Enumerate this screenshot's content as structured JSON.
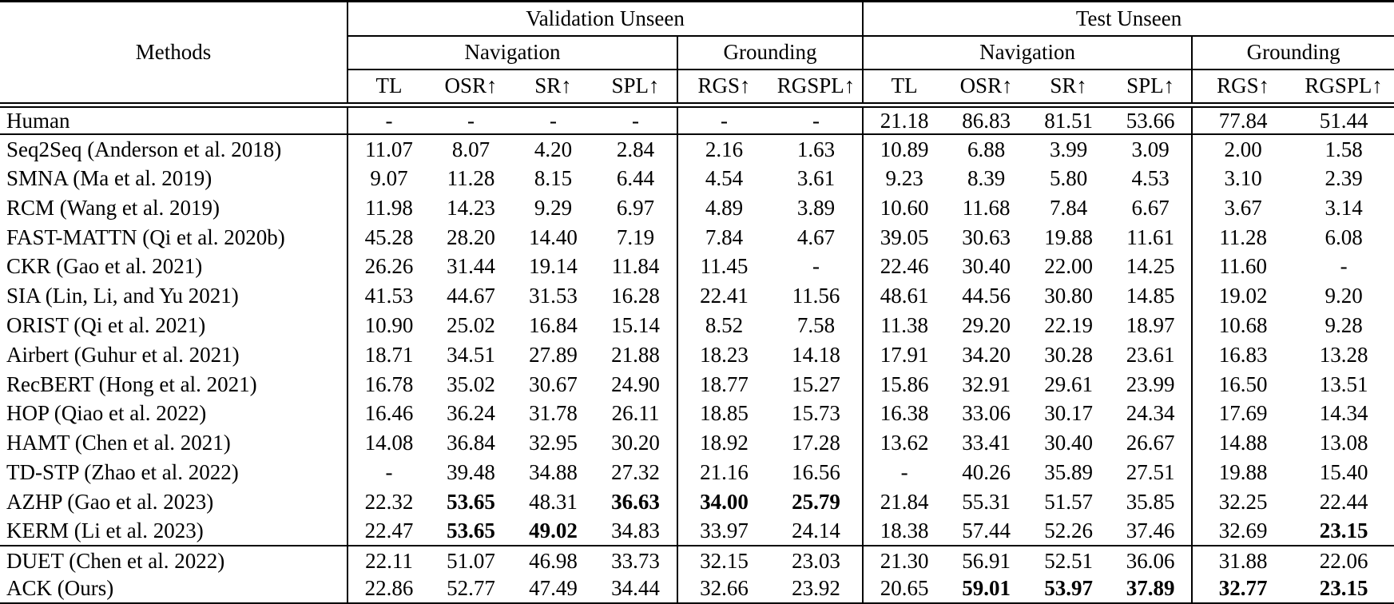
{
  "table": {
    "methods_label": "Methods",
    "groups": [
      {
        "label": "Validation Unseen",
        "sub": [
          {
            "label": "Navigation"
          },
          {
            "label": "Grounding"
          }
        ]
      },
      {
        "label": "Test Unseen",
        "sub": [
          {
            "label": "Navigation"
          },
          {
            "label": "Grounding"
          }
        ]
      }
    ],
    "columns": [
      "TL",
      "OSR↑",
      "SR↑",
      "SPL↑",
      "RGS↑",
      "RGSPL↑",
      "TL",
      "OSR↑",
      "SR↑",
      "SPL↑",
      "RGS↑",
      "RGSPL↑"
    ],
    "rows": [
      {
        "method": "Human",
        "values": [
          "-",
          "-",
          "-",
          "-",
          "-",
          "-",
          "21.18",
          "86.83",
          "81.51",
          "53.66",
          "77.84",
          "51.44"
        ],
        "bold": [],
        "rule_below": true
      },
      {
        "method": "Seq2Seq (Anderson et al. 2018)",
        "values": [
          "11.07",
          "8.07",
          "4.20",
          "2.84",
          "2.16",
          "1.63",
          "10.89",
          "6.88",
          "3.99",
          "3.09",
          "2.00",
          "1.58"
        ],
        "bold": [],
        "rule_below": false
      },
      {
        "method": "SMNA (Ma et al. 2019)",
        "values": [
          "9.07",
          "11.28",
          "8.15",
          "6.44",
          "4.54",
          "3.61",
          "9.23",
          "8.39",
          "5.80",
          "4.53",
          "3.10",
          "2.39"
        ],
        "bold": [],
        "rule_below": false
      },
      {
        "method": "RCM (Wang et al. 2019)",
        "values": [
          "11.98",
          "14.23",
          "9.29",
          "6.97",
          "4.89",
          "3.89",
          "10.60",
          "11.68",
          "7.84",
          "6.67",
          "3.67",
          "3.14"
        ],
        "bold": [],
        "rule_below": false
      },
      {
        "method": "FAST-MATTN (Qi et al. 2020b)",
        "values": [
          "45.28",
          "28.20",
          "14.40",
          "7.19",
          "7.84",
          "4.67",
          "39.05",
          "30.63",
          "19.88",
          "11.61",
          "11.28",
          "6.08"
        ],
        "bold": [],
        "rule_below": false
      },
      {
        "method": "CKR (Gao et al. 2021)",
        "values": [
          "26.26",
          "31.44",
          "19.14",
          "11.84",
          "11.45",
          "-",
          "22.46",
          "30.40",
          "22.00",
          "14.25",
          "11.60",
          "-"
        ],
        "bold": [],
        "rule_below": false
      },
      {
        "method": "SIA (Lin, Li, and Yu 2021)",
        "values": [
          "41.53",
          "44.67",
          "31.53",
          "16.28",
          "22.41",
          "11.56",
          "48.61",
          "44.56",
          "30.80",
          "14.85",
          "19.02",
          "9.20"
        ],
        "bold": [],
        "rule_below": false
      },
      {
        "method": "ORIST (Qi et al. 2021)",
        "values": [
          "10.90",
          "25.02",
          "16.84",
          "15.14",
          "8.52",
          "7.58",
          "11.38",
          "29.20",
          "22.19",
          "18.97",
          "10.68",
          "9.28"
        ],
        "bold": [],
        "rule_below": false
      },
      {
        "method": "Airbert (Guhur et al. 2021)",
        "values": [
          "18.71",
          "34.51",
          "27.89",
          "21.88",
          "18.23",
          "14.18",
          "17.91",
          "34.20",
          "30.28",
          "23.61",
          "16.83",
          "13.28"
        ],
        "bold": [],
        "rule_below": false
      },
      {
        "method": "RecBERT (Hong et al. 2021)",
        "values": [
          "16.78",
          "35.02",
          "30.67",
          "24.90",
          "18.77",
          "15.27",
          "15.86",
          "32.91",
          "29.61",
          "23.99",
          "16.50",
          "13.51"
        ],
        "bold": [],
        "rule_below": false
      },
      {
        "method": "HOP (Qiao et al. 2022)",
        "values": [
          "16.46",
          "36.24",
          "31.78",
          "26.11",
          "18.85",
          "15.73",
          "16.38",
          "33.06",
          "30.17",
          "24.34",
          "17.69",
          "14.34"
        ],
        "bold": [],
        "rule_below": false
      },
      {
        "method": "HAMT (Chen et al. 2021)",
        "values": [
          "14.08",
          "36.84",
          "32.95",
          "30.20",
          "18.92",
          "17.28",
          "13.62",
          "33.41",
          "30.40",
          "26.67",
          "14.88",
          "13.08"
        ],
        "bold": [],
        "rule_below": false
      },
      {
        "method": "TD-STP (Zhao et al. 2022)",
        "values": [
          "-",
          "39.48",
          "34.88",
          "27.32",
          "21.16",
          "16.56",
          "-",
          "40.26",
          "35.89",
          "27.51",
          "19.88",
          "15.40"
        ],
        "bold": [],
        "rule_below": false
      },
      {
        "method": "AZHP (Gao et al. 2023)",
        "values": [
          "22.32",
          "53.65",
          "48.31",
          "36.63",
          "34.00",
          "25.79",
          "21.84",
          "55.31",
          "51.57",
          "35.85",
          "32.25",
          "22.44"
        ],
        "bold": [
          1,
          3,
          4,
          5
        ],
        "rule_below": false
      },
      {
        "method": "KERM (Li et al. 2023)",
        "values": [
          "22.47",
          "53.65",
          "49.02",
          "34.83",
          "33.97",
          "24.14",
          "18.38",
          "57.44",
          "52.26",
          "37.46",
          "32.69",
          "23.15"
        ],
        "bold": [
          1,
          2,
          11
        ],
        "rule_below": true
      },
      {
        "method": "DUET (Chen et al. 2022)",
        "values": [
          "22.11",
          "51.07",
          "46.98",
          "33.73",
          "32.15",
          "23.03",
          "21.30",
          "56.91",
          "52.51",
          "36.06",
          "31.88",
          "22.06"
        ],
        "bold": [],
        "rule_below": false
      },
      {
        "method": "ACK (Ours)",
        "values": [
          "22.86",
          "52.77",
          "47.49",
          "34.44",
          "32.66",
          "23.92",
          "20.65",
          "59.01",
          "53.97",
          "37.89",
          "32.77",
          "23.15"
        ],
        "bold": [
          7,
          8,
          9,
          10,
          11
        ],
        "rule_below": false
      }
    ]
  }
}
